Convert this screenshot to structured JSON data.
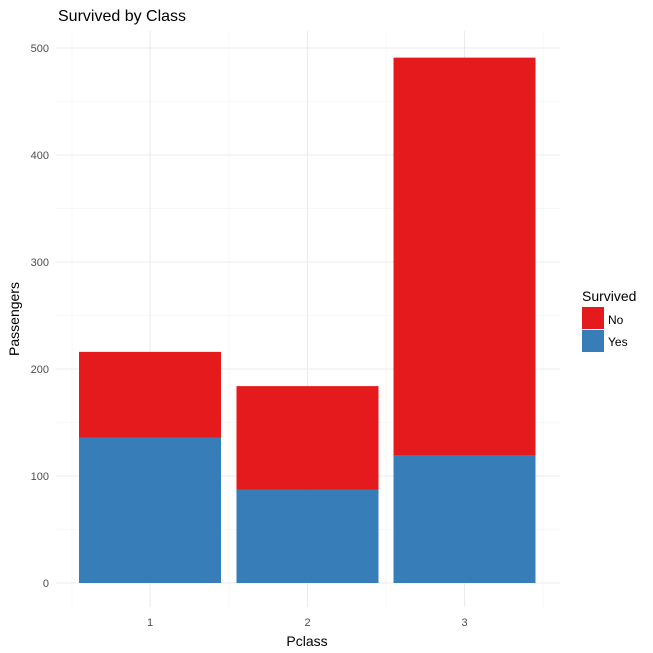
{
  "chart_data": {
    "type": "bar",
    "stacked": true,
    "title": "Survived by Class",
    "xlabel": "Pclass",
    "ylabel": "Passengers",
    "categories": [
      "1",
      "2",
      "3"
    ],
    "series": [
      {
        "name": "Yes",
        "color": "#377EB8",
        "values": [
          136,
          87,
          119
        ]
      },
      {
        "name": "No",
        "color": "#E41A1C",
        "values": [
          80,
          97,
          372
        ]
      }
    ],
    "ylim": [
      0,
      530
    ],
    "yticks": [
      0,
      100,
      200,
      300,
      400,
      500
    ],
    "grid": true,
    "legend": {
      "title": "Survived",
      "position": "right",
      "entries": [
        {
          "label": "No",
          "color": "#E41A1C"
        },
        {
          "label": "Yes",
          "color": "#377EB8"
        }
      ]
    }
  }
}
